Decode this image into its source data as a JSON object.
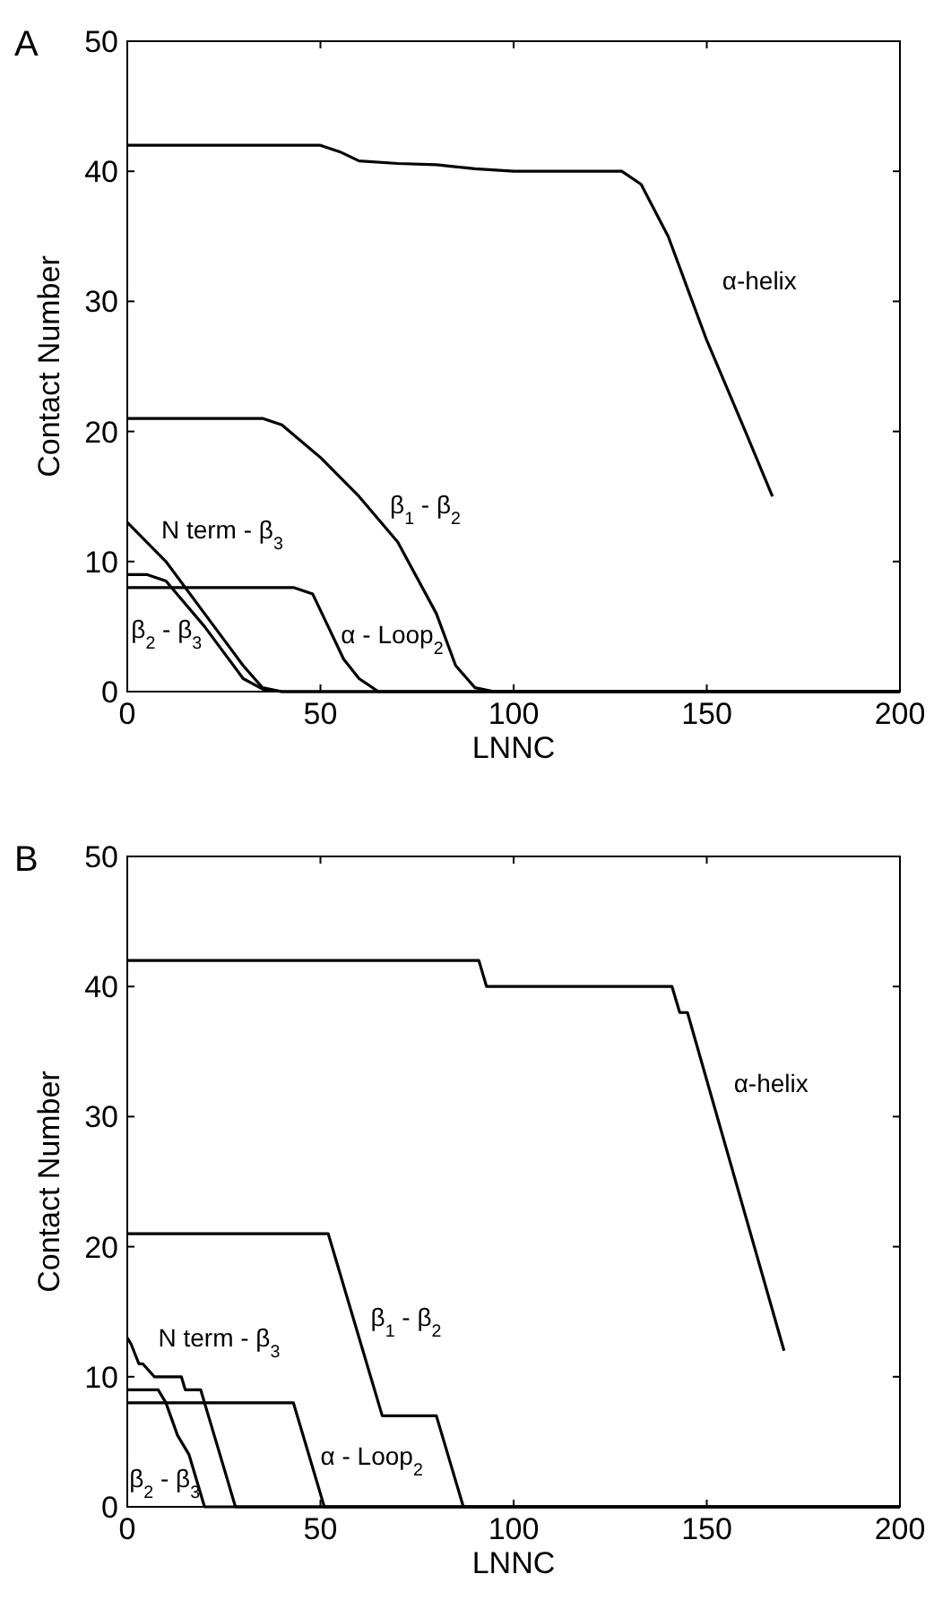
{
  "chart_data": [
    {
      "type": "line",
      "title": "A",
      "xlabel": "LNNC",
      "ylabel": "Contact Number",
      "xlim": [
        0,
        200
      ],
      "xticks": [
        0,
        50,
        100,
        150,
        200
      ],
      "ylim": [
        0,
        50
      ],
      "yticks": [
        0,
        10,
        20,
        30,
        40,
        50
      ],
      "marker": "none",
      "line_style": "solid",
      "series": [
        {
          "name": "α-helix",
          "color": "#000000",
          "x": [
            0,
            50,
            55,
            60,
            70,
            80,
            90,
            100,
            128,
            133,
            140,
            150,
            160,
            167
          ],
          "values": [
            42,
            42,
            41.5,
            40.8,
            40.6,
            40.5,
            40.2,
            40,
            40,
            39,
            35,
            27,
            20,
            15
          ]
        },
        {
          "name": "β$_{1}$ - β$_{2}$",
          "color": "#000000",
          "x": [
            0,
            35,
            40,
            50,
            60,
            70,
            80,
            85,
            90,
            95,
            200
          ],
          "values": [
            21,
            21,
            20.5,
            18,
            15,
            11.5,
            6,
            2,
            0.3,
            0,
            0
          ]
        },
        {
          "name": "N term - β$_{3}$",
          "color": "#000000",
          "x": [
            0,
            10,
            20,
            30,
            35,
            40,
            200
          ],
          "values": [
            13,
            10,
            6,
            2,
            0.3,
            0,
            0
          ]
        },
        {
          "name": "β$_{2}$ - β$_{3}$",
          "color": "#000000",
          "x": [
            0,
            5,
            10,
            20,
            30,
            35,
            40,
            200
          ],
          "values": [
            9,
            9,
            8.5,
            5,
            1,
            0.2,
            0,
            0
          ]
        },
        {
          "name": "α - Loop$_{2}$",
          "color": "#000000",
          "x": [
            0,
            43,
            48,
            52,
            56,
            60,
            65,
            200
          ],
          "values": [
            8,
            8,
            7.5,
            5,
            2.5,
            1,
            0,
            0
          ]
        }
      ]
    },
    {
      "type": "line",
      "title": "B",
      "xlabel": "LNNC",
      "ylabel": "Contact Number",
      "xlim": [
        0,
        200
      ],
      "xticks": [
        0,
        50,
        100,
        150,
        200
      ],
      "ylim": [
        0,
        50
      ],
      "yticks": [
        0,
        10,
        20,
        30,
        40,
        50
      ],
      "marker": "none",
      "line_style": "solid",
      "series": [
        {
          "name": "α-helix",
          "color": "#000000",
          "x": [
            0,
            91,
            93,
            141,
            143,
            145,
            170
          ],
          "values": [
            42,
            42,
            40,
            40,
            38,
            38,
            12
          ]
        },
        {
          "name": "β$_{1}$ - β$_{2}$",
          "color": "#000000",
          "x": [
            0,
            52,
            66,
            80,
            86,
            87,
            200
          ],
          "values": [
            21,
            21,
            7,
            7,
            1,
            0,
            0
          ]
        },
        {
          "name": "N term - β$_{3}$",
          "color": "#000000",
          "x": [
            0,
            1,
            3,
            4,
            7,
            14,
            15,
            19,
            20,
            28,
            200
          ],
          "values": [
            13,
            12.5,
            11,
            11,
            10,
            10,
            9,
            9,
            8,
            0,
            0
          ]
        },
        {
          "name": "β$_{2}$ - β$_{3}$",
          "color": "#000000",
          "x": [
            0,
            8,
            10,
            13,
            16,
            18,
            20,
            200
          ],
          "values": [
            9,
            9,
            8,
            5.5,
            4,
            2,
            0,
            0
          ]
        },
        {
          "name": "α - Loop$_{2}$",
          "color": "#000000",
          "x": [
            0,
            43,
            51,
            200
          ],
          "values": [
            8,
            8,
            0,
            0
          ]
        }
      ]
    }
  ]
}
